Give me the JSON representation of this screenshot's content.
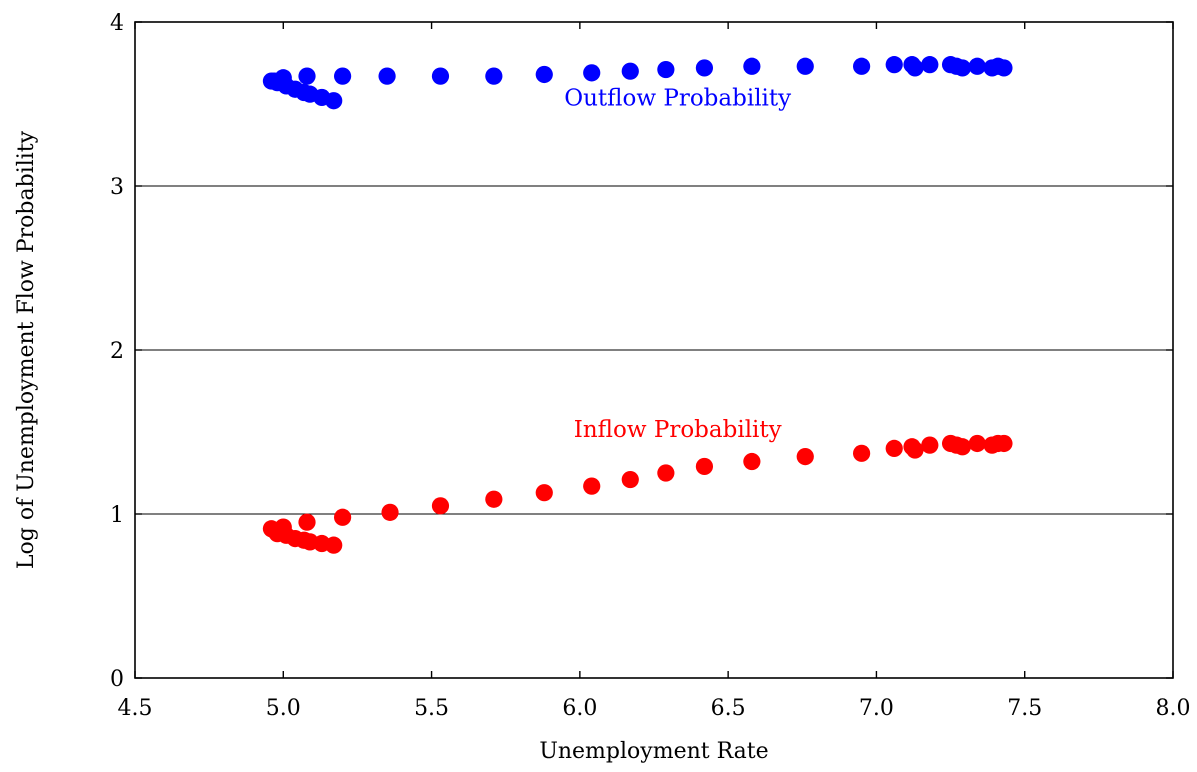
{
  "chart_data": {
    "type": "scatter",
    "xlabel": "Unemployment Rate",
    "ylabel": "Log of Unemployment Flow Probability",
    "xlim": [
      4.5,
      8.0
    ],
    "ylim": [
      0,
      4
    ],
    "x_ticks": [
      "4.5",
      "5.0",
      "5.5",
      "6.0",
      "6.5",
      "7.0",
      "7.5",
      "8.0"
    ],
    "y_ticks": [
      "0",
      "1",
      "2",
      "3",
      "4"
    ],
    "grid": "horizontal",
    "annotations": [
      {
        "text": "Outflow Probability",
        "series": "outflow",
        "x": 6.33,
        "y": 3.49
      },
      {
        "text": "Inflow Probability",
        "series": "inflow",
        "x": 6.33,
        "y": 1.47
      }
    ],
    "series": [
      {
        "id": "outflow",
        "color": "#0000ff",
        "points": [
          [
            4.96,
            3.64
          ],
          [
            4.97,
            3.64
          ],
          [
            4.98,
            3.63
          ],
          [
            5.0,
            3.66
          ],
          [
            5.01,
            3.61
          ],
          [
            5.04,
            3.59
          ],
          [
            5.07,
            3.57
          ],
          [
            5.08,
            3.67
          ],
          [
            5.09,
            3.56
          ],
          [
            5.13,
            3.54
          ],
          [
            5.17,
            3.52
          ],
          [
            5.2,
            3.67
          ],
          [
            5.35,
            3.67
          ],
          [
            5.53,
            3.67
          ],
          [
            5.71,
            3.67
          ],
          [
            5.88,
            3.68
          ],
          [
            6.04,
            3.69
          ],
          [
            6.17,
            3.7
          ],
          [
            6.29,
            3.71
          ],
          [
            6.42,
            3.72
          ],
          [
            6.58,
            3.73
          ],
          [
            6.76,
            3.73
          ],
          [
            6.95,
            3.73
          ],
          [
            7.06,
            3.74
          ],
          [
            7.12,
            3.74
          ],
          [
            7.13,
            3.72
          ],
          [
            7.18,
            3.74
          ],
          [
            7.25,
            3.74
          ],
          [
            7.27,
            3.73
          ],
          [
            7.29,
            3.72
          ],
          [
            7.34,
            3.73
          ],
          [
            7.39,
            3.72
          ],
          [
            7.41,
            3.73
          ],
          [
            7.43,
            3.72
          ]
        ]
      },
      {
        "id": "inflow",
        "color": "#ff0000",
        "points": [
          [
            4.96,
            0.91
          ],
          [
            4.97,
            0.9
          ],
          [
            4.98,
            0.88
          ],
          [
            5.0,
            0.92
          ],
          [
            5.01,
            0.87
          ],
          [
            5.04,
            0.85
          ],
          [
            5.07,
            0.84
          ],
          [
            5.08,
            0.95
          ],
          [
            5.09,
            0.83
          ],
          [
            5.13,
            0.82
          ],
          [
            5.17,
            0.81
          ],
          [
            5.2,
            0.98
          ],
          [
            5.36,
            1.01
          ],
          [
            5.53,
            1.05
          ],
          [
            5.71,
            1.09
          ],
          [
            5.88,
            1.13
          ],
          [
            6.04,
            1.17
          ],
          [
            6.17,
            1.21
          ],
          [
            6.29,
            1.25
          ],
          [
            6.42,
            1.29
          ],
          [
            6.58,
            1.32
          ],
          [
            6.76,
            1.35
          ],
          [
            6.95,
            1.37
          ],
          [
            7.06,
            1.4
          ],
          [
            7.12,
            1.41
          ],
          [
            7.13,
            1.39
          ],
          [
            7.18,
            1.42
          ],
          [
            7.25,
            1.43
          ],
          [
            7.27,
            1.42
          ],
          [
            7.29,
            1.41
          ],
          [
            7.34,
            1.43
          ],
          [
            7.39,
            1.42
          ],
          [
            7.41,
            1.43
          ],
          [
            7.43,
            1.43
          ]
        ]
      }
    ]
  }
}
